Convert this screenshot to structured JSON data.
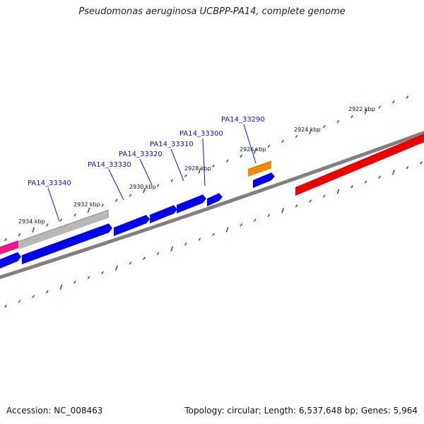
{
  "title": "Pseudomonas aeruginosa UCBPP-PA14, complete genome",
  "footer": {
    "accession": "Accession: NC_008463",
    "summary": "Topology: circular; Length: 6,537,648 bp; Genes: 5,964"
  },
  "kbp_labels": [
    "2922 kbp",
    "2924 kbp",
    "2926 kbp",
    "2928 kbp",
    "2930 kbp",
    "2932 kbp",
    "2934 kbp"
  ],
  "gene_labels": [
    "PA14_33290",
    "PA14_33300",
    "PA14_33310",
    "PA14_33320",
    "PA14_33330",
    "PA14_33340"
  ],
  "colors": {
    "backbone": "#808080",
    "tick": "#1a7a1a",
    "cds_blue": "#0000ee",
    "gene_red": "#ee0000",
    "gene_orange": "#f28c00",
    "gene_pink": "#ee1a8c",
    "gene_gray": "#b8b8b8",
    "label_blue": "#1010c8"
  }
}
